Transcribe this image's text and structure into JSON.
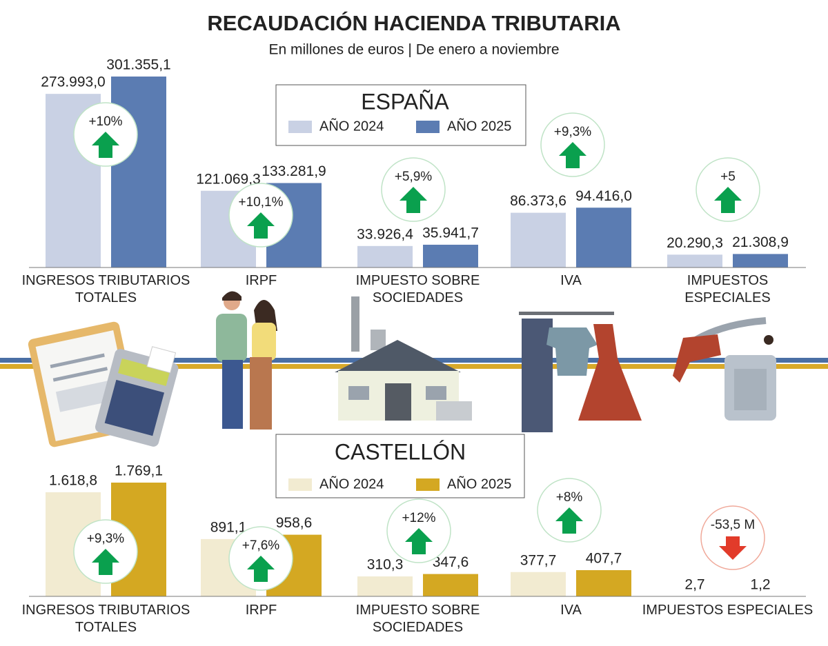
{
  "title": "RECAUDACIÓN HACIENDA TRIBUTARIA",
  "subtitle": "En millones de euros | De enero a noviembre",
  "chart_data": [
    {
      "type": "bar",
      "title": "ESPAÑA",
      "categories": [
        "INGRESOS TRIBUTARIOS\nTOTALES",
        "IRPF",
        "IMPUESTO SOBRE\nSOCIEDADES",
        "IVA",
        "IMPUESTOS\nESPECIALES"
      ],
      "series": [
        {
          "name": "AÑO 2024",
          "color": "#c9d1e4",
          "values": [
            273993.0,
            121069.3,
            33926.4,
            86373.6,
            20290.3
          ],
          "value_labels": [
            "273.993,0",
            "121.069,3",
            "33.926,4",
            "86.373,6",
            "20.290,3"
          ]
        },
        {
          "name": "AÑO 2025",
          "color": "#5b7cb2",
          "values": [
            301355.1,
            133281.9,
            35941.7,
            94416.0,
            21308.9
          ],
          "value_labels": [
            "301.355,1",
            "133.281,9",
            "35.941,7",
            "94.416,0",
            "21.308,9"
          ]
        }
      ],
      "annotations": [
        "+10%",
        "+10,1%",
        "+5,9%",
        "+9,3%",
        "+5"
      ]
    },
    {
      "type": "bar",
      "title": "CASTELLÓN",
      "categories": [
        "INGRESOS TRIBUTARIOS\nTOTALES",
        "IRPF",
        "IMPUESTO SOBRE\nSOCIEDADES",
        "IVA",
        "IMPUESTOS ESPECIALES"
      ],
      "series": [
        {
          "name": "AÑO 2024",
          "color": "#f2ebd1",
          "values": [
            1618.8,
            891.1,
            310.3,
            377.7,
            2.7
          ],
          "value_labels": [
            "1.618,8",
            "891,1",
            "310,3",
            "377,7",
            "2,7"
          ]
        },
        {
          "name": "AÑO 2025",
          "color": "#d4a822",
          "values": [
            1769.1,
            958.6,
            347.6,
            407.7,
            1.2
          ],
          "value_labels": [
            "1.769,1",
            "958,6",
            "347,6",
            "407,7",
            "1,2"
          ]
        }
      ],
      "annotations": [
        "+9,3%",
        "+7,6%",
        "+12%",
        "+8%",
        "-53,5 M"
      ]
    }
  ]
}
